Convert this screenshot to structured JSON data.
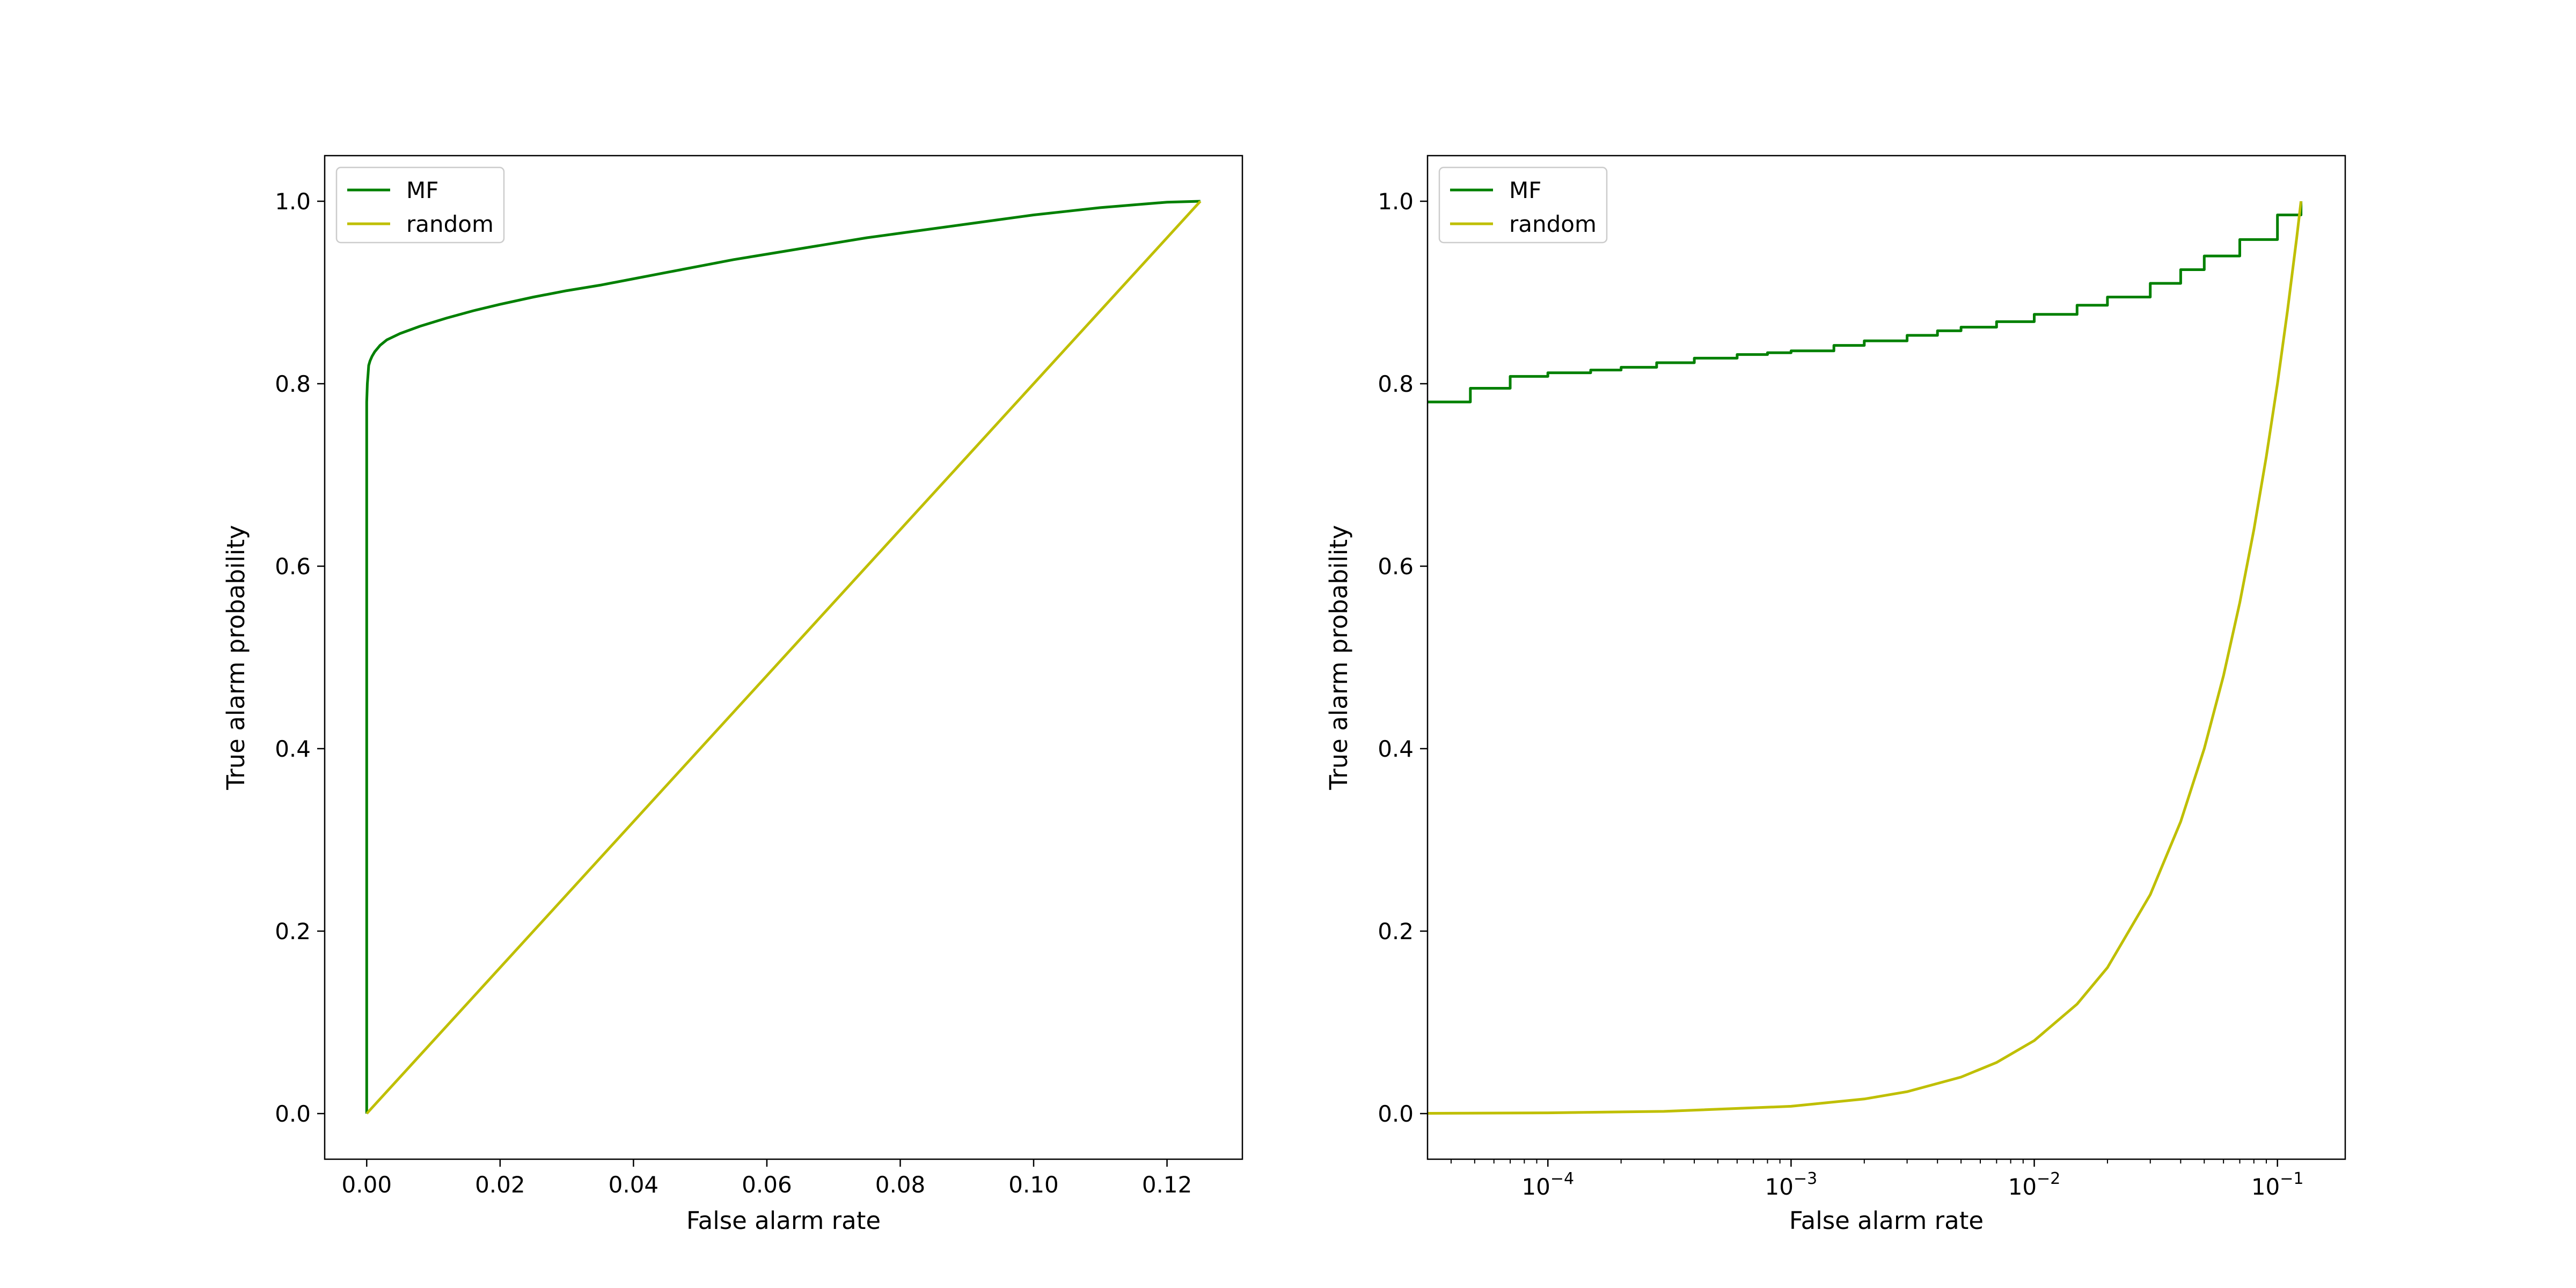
{
  "chart_data": [
    {
      "type": "line",
      "xlabel": "False alarm rate",
      "ylabel": "True alarm probability",
      "xscale": "linear",
      "xlim": [
        -0.0063,
        0.1313
      ],
      "ylim": [
        -0.05,
        1.05
      ],
      "xticks": [
        0.0,
        0.02,
        0.04,
        0.06,
        0.08,
        0.1,
        0.12
      ],
      "xtick_labels": [
        "0.00",
        "0.02",
        "0.04",
        "0.06",
        "0.08",
        "0.10",
        "0.12"
      ],
      "yticks": [
        0.0,
        0.2,
        0.4,
        0.6,
        0.8,
        1.0
      ],
      "ytick_labels": [
        "0.0",
        "0.2",
        "0.4",
        "0.6",
        "0.8",
        "1.0"
      ],
      "grid": false,
      "legend": "upper left",
      "series": [
        {
          "name": "MF",
          "color": "#008000",
          "x": [
            0.0,
            0.0,
            0.0001,
            0.0002,
            0.0003,
            0.0005,
            0.0008,
            0.0012,
            0.002,
            0.003,
            0.005,
            0.008,
            0.012,
            0.016,
            0.02,
            0.025,
            0.03,
            0.035,
            0.04,
            0.045,
            0.05,
            0.055,
            0.06,
            0.065,
            0.07,
            0.075,
            0.08,
            0.085,
            0.09,
            0.095,
            0.1,
            0.105,
            0.11,
            0.115,
            0.12,
            0.125
          ],
          "y": [
            0.0,
            0.78,
            0.8,
            0.81,
            0.82,
            0.825,
            0.83,
            0.835,
            0.842,
            0.848,
            0.855,
            0.863,
            0.872,
            0.88,
            0.887,
            0.895,
            0.902,
            0.908,
            0.915,
            0.922,
            0.929,
            0.936,
            0.942,
            0.948,
            0.954,
            0.96,
            0.965,
            0.97,
            0.975,
            0.98,
            0.985,
            0.989,
            0.993,
            0.996,
            0.999,
            1.0
          ]
        },
        {
          "name": "random",
          "color": "#bfbf00",
          "x": [
            0.0,
            0.125
          ],
          "y": [
            0.0,
            1.0
          ]
        }
      ]
    },
    {
      "type": "line",
      "xlabel": "False alarm rate",
      "ylabel": "True alarm probability",
      "xscale": "log",
      "xlim": [
        3.2e-05,
        0.19
      ],
      "ylim": [
        -0.05,
        1.05
      ],
      "xticks": [
        0.0001,
        0.001,
        0.01,
        0.1
      ],
      "xtick_labels": [
        {
          "base": "10",
          "exp": "−4"
        },
        {
          "base": "10",
          "exp": "−3"
        },
        {
          "base": "10",
          "exp": "−2"
        },
        {
          "base": "10",
          "exp": "−1"
        }
      ],
      "yticks": [
        0.0,
        0.2,
        0.4,
        0.6,
        0.8,
        1.0
      ],
      "ytick_labels": [
        "0.0",
        "0.2",
        "0.4",
        "0.6",
        "0.8",
        "1.0"
      ],
      "grid": false,
      "legend": "upper left",
      "series": [
        {
          "name": "MF",
          "color": "#008000",
          "step": true,
          "x": [
            3.2e-05,
            4.8e-05,
            7e-05,
            0.0001,
            0.00015,
            0.0002,
            0.00028,
            0.0004,
            0.0006,
            0.0008,
            0.001,
            0.0015,
            0.002,
            0.003,
            0.004,
            0.005,
            0.007,
            0.01,
            0.015,
            0.02,
            0.03,
            0.04,
            0.05,
            0.07,
            0.1,
            0.125
          ],
          "y": [
            0.78,
            0.795,
            0.808,
            0.812,
            0.815,
            0.818,
            0.823,
            0.828,
            0.832,
            0.834,
            0.836,
            0.842,
            0.847,
            0.853,
            0.858,
            0.862,
            0.868,
            0.876,
            0.886,
            0.895,
            0.91,
            0.925,
            0.94,
            0.958,
            0.985,
            1.0
          ]
        },
        {
          "name": "random",
          "color": "#bfbf00",
          "x": [
            3.2e-05,
            0.0001,
            0.0003,
            0.001,
            0.002,
            0.003,
            0.005,
            0.007,
            0.01,
            0.015,
            0.02,
            0.03,
            0.04,
            0.05,
            0.06,
            0.07,
            0.08,
            0.09,
            0.1,
            0.11,
            0.12,
            0.125
          ],
          "y": [
            0.0003,
            0.0008,
            0.0024,
            0.008,
            0.016,
            0.024,
            0.04,
            0.056,
            0.08,
            0.12,
            0.16,
            0.24,
            0.32,
            0.4,
            0.48,
            0.56,
            0.64,
            0.72,
            0.8,
            0.88,
            0.96,
            1.0
          ]
        }
      ]
    }
  ]
}
